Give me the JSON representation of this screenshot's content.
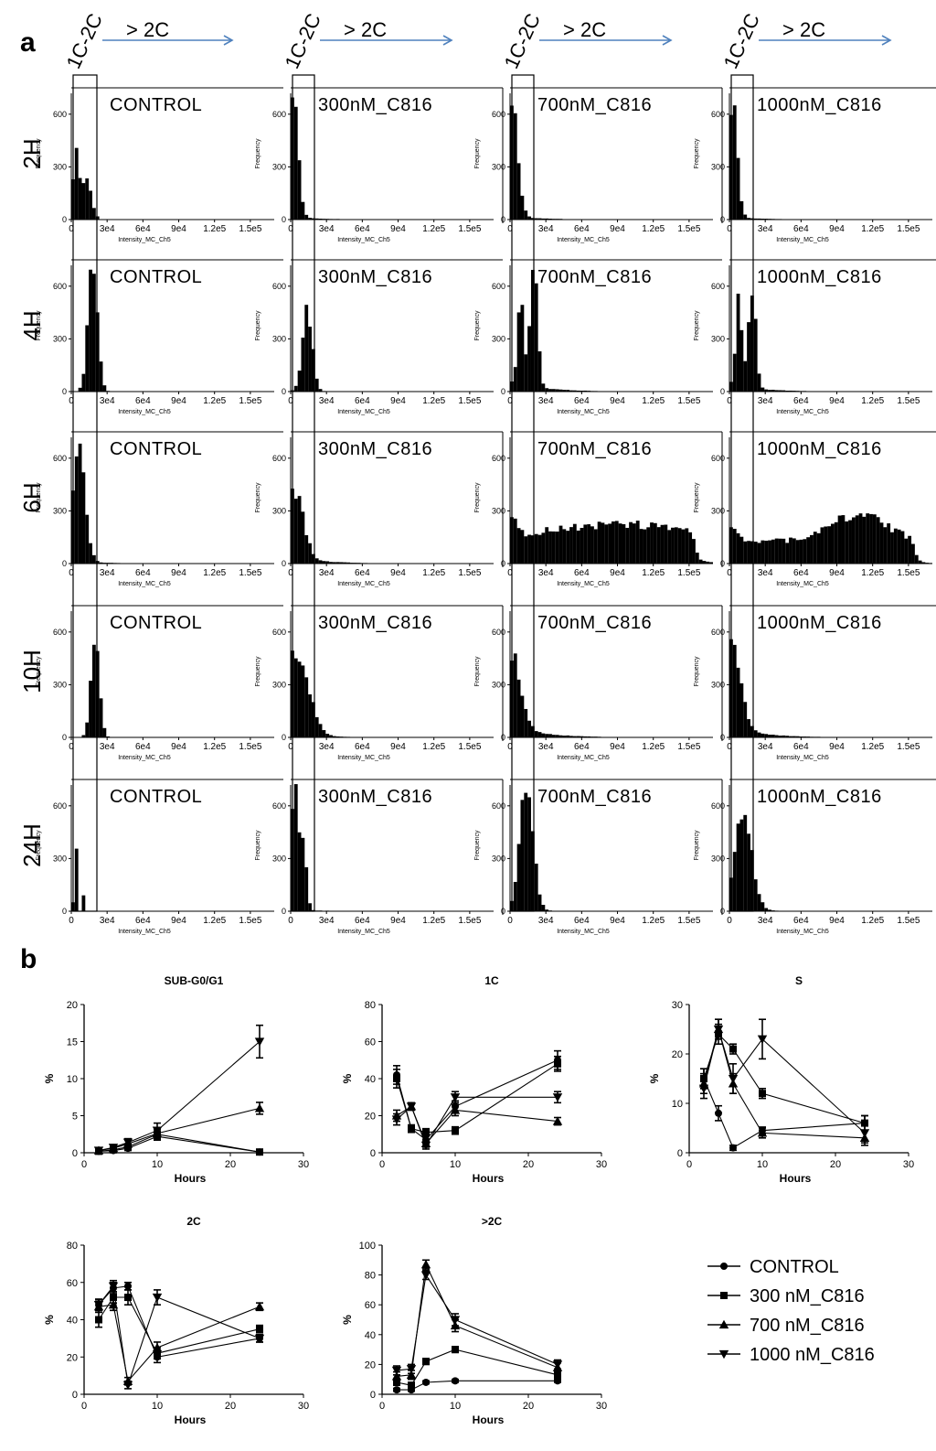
{
  "figure": {
    "panel_a_label": "a",
    "panel_b_label": "b",
    "gate_label": "1C-2C",
    "arrow_label": "> 2C",
    "arrow_color": "#4f81bd",
    "histogram_color": "#000000"
  },
  "chart_data": [
    {
      "type": "histogram-grid",
      "id": "panel-a",
      "rows": [
        "2H",
        "4H",
        "6H",
        "10H",
        "24H"
      ],
      "columns": [
        "CONTROL",
        "300nM_C816",
        "700nM_C816",
        "1000nM_C816"
      ],
      "xlabel": "Intensity_MC_Ch5",
      "ylabel": "Frequency",
      "x_ticks": [
        "0",
        "3e4",
        "6e4",
        "9e4",
        "1.2e5",
        "1.5e5"
      ],
      "x_tick_values": [
        0,
        30000,
        60000,
        90000,
        120000,
        150000
      ],
      "y_ticks": [
        0,
        300,
        600
      ],
      "xlim": [
        0,
        170000
      ],
      "ylim": [
        0,
        750
      ],
      "distributions": [
        [
          {
            "peaks": [
              {
                "center": 4000,
                "sigma": 2500,
                "height": 430
              },
              {
                "center": 13000,
                "sigma": 4000,
                "height": 220
              }
            ],
            "plateau": 0,
            "tail": 0
          },
          {
            "peaks": [
              {
                "center": 2500,
                "sigma": 4000,
                "height": 680
              }
            ],
            "plateau": 0,
            "tail": 15
          },
          {
            "peaks": [
              {
                "center": 2500,
                "sigma": 4500,
                "height": 590
              }
            ],
            "plateau": 0,
            "tail": 20
          },
          {
            "peaks": [
              {
                "center": 2500,
                "sigma": 4000,
                "height": 640
              }
            ],
            "plateau": 0,
            "tail": 15
          }
        ],
        [
          {
            "peaks": [
              {
                "center": 18000,
                "sigma": 4000,
                "height": 700
              }
            ],
            "plateau": 0,
            "tail": 0
          },
          {
            "peaks": [
              {
                "center": 14000,
                "sigma": 4000,
                "height": 480
              }
            ],
            "plateau": 0,
            "tail": 5
          },
          {
            "peaks": [
              {
                "center": 9000,
                "sigma": 2500,
                "height": 560
              },
              {
                "center": 20000,
                "sigma": 3000,
                "height": 700
              }
            ],
            "plateau": 0,
            "tail": 60
          },
          {
            "peaks": [
              {
                "center": 8000,
                "sigma": 2500,
                "height": 520
              },
              {
                "center": 19000,
                "sigma": 3000,
                "height": 580
              }
            ],
            "plateau": 0,
            "tail": 40
          }
        ],
        [
          {
            "peaks": [
              {
                "center": 6000,
                "sigma": 5500,
                "height": 620
              }
            ],
            "plateau": 0,
            "tail": 15
          },
          {
            "peaks": [
              {
                "center": 4000,
                "sigma": 7000,
                "height": 370
              }
            ],
            "plateau": 0,
            "tail": 40
          },
          {
            "peaks": [
              {
                "center": 2000,
                "sigma": 4000,
                "height": 80
              },
              {
                "center": 90000,
                "sigma": 40000,
                "height": 60
              }
            ],
            "plateau": 165,
            "tail": 0
          },
          {
            "peaks": [
              {
                "center": 2000,
                "sigma": 4000,
                "height": 60
              },
              {
                "center": 108000,
                "sigma": 22000,
                "height": 150
              }
            ],
            "plateau": 130,
            "tail": 0
          }
        ],
        [
          {
            "peaks": [
              {
                "center": 20000,
                "sigma": 3500,
                "height": 600
              }
            ],
            "plateau": 0,
            "tail": 0
          },
          {
            "peaks": [
              {
                "center": 5000,
                "sigma": 10000,
                "height": 470
              }
            ],
            "plateau": 0,
            "tail": 20
          },
          {
            "peaks": [
              {
                "center": 2000,
                "sigma": 7500,
                "height": 390
              }
            ],
            "plateau": 0,
            "tail": 70
          },
          {
            "peaks": [
              {
                "center": 2000,
                "sigma": 7500,
                "height": 450
              }
            ],
            "plateau": 0,
            "tail": 60
          }
        ],
        [
          {
            "peaks": [
              {
                "center": 3500,
                "sigma": 900,
                "height": 640
              },
              {
                "center": 10000,
                "sigma": 1000,
                "height": 100
              }
            ],
            "plateau": 0,
            "tail": 0
          },
          {
            "peaks": [
              {
                "center": 3500,
                "sigma": 3000,
                "height": 680
              },
              {
                "center": 11000,
                "sigma": 2500,
                "height": 330
              }
            ],
            "plateau": 0,
            "tail": 10
          },
          {
            "peaks": [
              {
                "center": 14000,
                "sigma": 5500,
                "height": 720
              }
            ],
            "plateau": 0,
            "tail": 10
          },
          {
            "peaks": [
              {
                "center": 12000,
                "sigma": 7000,
                "height": 550
              }
            ],
            "plateau": 0,
            "tail": 15
          }
        ]
      ]
    },
    {
      "type": "line",
      "id": "sub-g0-g1",
      "title": "SUB-G0/G1",
      "xlabel": "Hours",
      "ylabel": "%",
      "x": [
        2,
        4,
        6,
        10,
        24
      ],
      "xlim": [
        0,
        30
      ],
      "xticks": [
        0,
        10,
        20,
        30
      ],
      "ylim": [
        0,
        20
      ],
      "yticks": [
        0,
        5,
        10,
        15,
        20
      ],
      "series": [
        {
          "name": "CONTROL",
          "marker": "circle",
          "values": [
            0.2,
            0.3,
            0.6,
            2.2,
            0.1
          ],
          "errors": [
            0.2,
            0.2,
            0.3,
            0.5,
            0.1
          ]
        },
        {
          "name": "300 nM_C816",
          "marker": "square",
          "values": [
            0.2,
            0.4,
            0.8,
            2.5,
            0.1
          ],
          "errors": [
            0.2,
            0.3,
            0.4,
            0.6,
            0.1
          ]
        },
        {
          "name": "700 nM_C816",
          "marker": "triangle-up",
          "values": [
            0.3,
            0.6,
            1.2,
            2.6,
            6.0
          ],
          "errors": [
            0.2,
            0.3,
            0.5,
            0.7,
            0.8
          ]
        },
        {
          "name": "1000 nM_C816",
          "marker": "triangle-down",
          "values": [
            0.3,
            0.7,
            1.4,
            3.0,
            15.0
          ],
          "errors": [
            0.2,
            0.3,
            0.5,
            1.0,
            2.2
          ]
        }
      ]
    },
    {
      "type": "line",
      "id": "1c",
      "title": "1C",
      "xlabel": "Hours",
      "ylabel": "%",
      "x": [
        2,
        4,
        6,
        10,
        24
      ],
      "xlim": [
        0,
        30
      ],
      "xticks": [
        0,
        10,
        20,
        30
      ],
      "ylim": [
        0,
        80
      ],
      "yticks": [
        0,
        20,
        40,
        60,
        80
      ],
      "series": [
        {
          "name": "CONTROL",
          "marker": "circle",
          "values": [
            42,
            13,
            7,
            25,
            50
          ],
          "errors": [
            5,
            2,
            2,
            3,
            5
          ]
        },
        {
          "name": "300 nM_C816",
          "marker": "square",
          "values": [
            40,
            13,
            11,
            12,
            48
          ],
          "errors": [
            5,
            2,
            2,
            2,
            4
          ]
        },
        {
          "name": "700 nM_C816",
          "marker": "triangle-up",
          "values": [
            20,
            25,
            5,
            23,
            17
          ],
          "errors": [
            3,
            2,
            2,
            3,
            2
          ]
        },
        {
          "name": "1000 nM_C816",
          "marker": "triangle-down",
          "values": [
            18,
            25,
            4,
            30,
            30
          ],
          "errors": [
            3,
            2,
            2,
            3,
            3
          ]
        }
      ]
    },
    {
      "type": "line",
      "id": "s",
      "title": "S",
      "xlabel": "Hours",
      "ylabel": "%",
      "x": [
        2,
        4,
        6,
        10,
        24
      ],
      "xlim": [
        0,
        30
      ],
      "xticks": [
        0,
        10,
        20,
        30
      ],
      "ylim": [
        0,
        30
      ],
      "yticks": [
        0,
        10,
        20,
        30
      ],
      "series": [
        {
          "name": "CONTROL",
          "marker": "circle",
          "values": [
            15,
            8,
            1,
            4.5,
            6
          ],
          "errors": [
            2,
            1.5,
            0.5,
            0.7,
            1.5
          ]
        },
        {
          "name": "300 nM_C816",
          "marker": "square",
          "values": [
            15,
            24,
            21,
            12,
            6
          ],
          "errors": [
            2,
            2,
            1,
            1,
            1.5
          ]
        },
        {
          "name": "700 nM_C816",
          "marker": "triangle-up",
          "values": [
            14,
            25,
            14,
            4,
            3
          ],
          "errors": [
            2,
            2,
            2,
            1,
            1.5
          ]
        },
        {
          "name": "1000 nM_C816",
          "marker": "triangle-down",
          "values": [
            13,
            25,
            15,
            23,
            4
          ],
          "errors": [
            2,
            2,
            3,
            4,
            2
          ]
        }
      ]
    },
    {
      "type": "line",
      "id": "2c",
      "title": "2C",
      "xlabel": "Hours",
      "ylabel": "%",
      "x": [
        2,
        4,
        6,
        10,
        24
      ],
      "xlim": [
        0,
        30
      ],
      "xticks": [
        0,
        10,
        20,
        30
      ],
      "ylim": [
        0,
        80
      ],
      "yticks": [
        0,
        20,
        40,
        60,
        80
      ],
      "series": [
        {
          "name": "CONTROL",
          "marker": "circle",
          "values": [
            48,
            57,
            58,
            20,
            30
          ],
          "errors": [
            3,
            3,
            2,
            3,
            2
          ]
        },
        {
          "name": "300 nM_C816",
          "marker": "square",
          "values": [
            40,
            52,
            52,
            22,
            35
          ],
          "errors": [
            4,
            3,
            4,
            3,
            2
          ]
        },
        {
          "name": "700 nM_C816",
          "marker": "triangle-up",
          "values": [
            47,
            48,
            7,
            25,
            47
          ],
          "errors": [
            3,
            3,
            2,
            3,
            2
          ]
        },
        {
          "name": "1000 nM_C816",
          "marker": "triangle-down",
          "values": [
            48,
            58,
            5,
            52,
            30
          ],
          "errors": [
            3,
            3,
            2,
            4,
            2
          ]
        }
      ]
    },
    {
      "type": "line",
      "id": "gt2c",
      "title": ">2C",
      "xlabel": "Hours",
      "ylabel": "%",
      "x": [
        2,
        4,
        6,
        10,
        24
      ],
      "xlim": [
        0,
        30
      ],
      "xticks": [
        0,
        10,
        20,
        30
      ],
      "ylim": [
        0,
        100
      ],
      "yticks": [
        0,
        20,
        40,
        60,
        80,
        100
      ],
      "series": [
        {
          "name": "CONTROL",
          "marker": "circle",
          "values": [
            3,
            3,
            8,
            9,
            9
          ],
          "errors": [
            1,
            1,
            1,
            1,
            1
          ]
        },
        {
          "name": "300 nM_C816",
          "marker": "square",
          "values": [
            8,
            6,
            22,
            30,
            13
          ],
          "errors": [
            2,
            2,
            2,
            2,
            2
          ]
        },
        {
          "name": "700 nM_C816",
          "marker": "triangle-up",
          "values": [
            12,
            13,
            87,
            46,
            18
          ],
          "errors": [
            3,
            3,
            3,
            4,
            3
          ]
        },
        {
          "name": "1000 nM_C816",
          "marker": "triangle-down",
          "values": [
            16,
            17,
            80,
            50,
            20
          ],
          "errors": [
            3,
            3,
            3,
            4,
            3
          ]
        }
      ]
    }
  ],
  "legend": [
    {
      "name": "CONTROL",
      "marker": "circle"
    },
    {
      "name": "300 nM_C816",
      "marker": "square"
    },
    {
      "name": "700 nM_C816",
      "marker": "triangle-up"
    },
    {
      "name": "1000 nM_C816",
      "marker": "triangle-down"
    }
  ]
}
